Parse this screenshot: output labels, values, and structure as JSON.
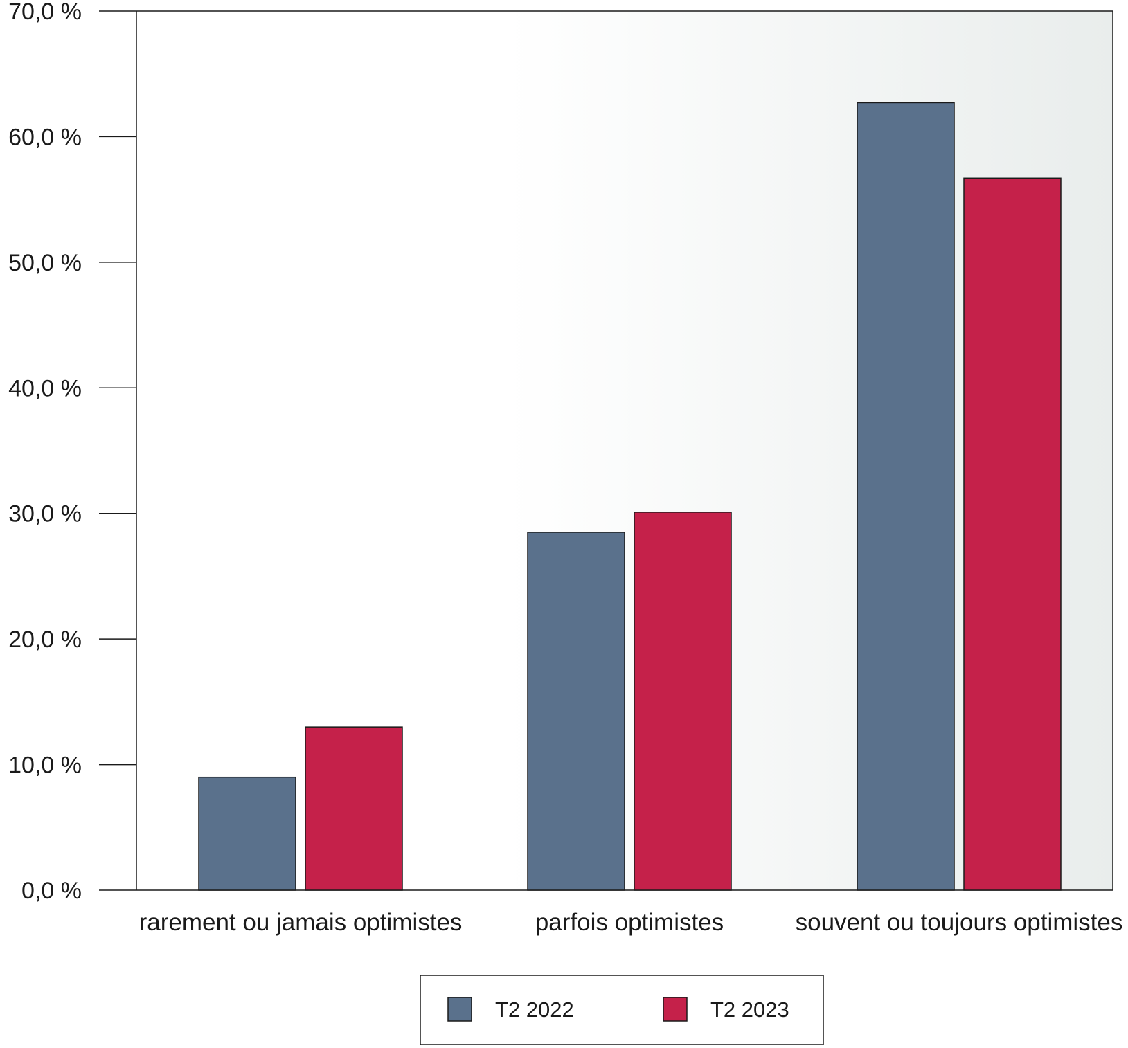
{
  "chart_data": {
    "type": "bar",
    "title": "",
    "xlabel": "",
    "ylabel": "",
    "categories": [
      "rarement ou jamais optimistes",
      "parfois optimistes",
      "souvent ou toujours optimistes"
    ],
    "series": [
      {
        "name": "T2 2022",
        "color": "#5a718c",
        "values": [
          9.0,
          28.5,
          62.7
        ]
      },
      {
        "name": "T2 2023",
        "color": "#c5214a",
        "values": [
          13.0,
          30.1,
          56.7
        ]
      }
    ],
    "ylim": [
      0,
      70
    ],
    "yticks": [
      0,
      10,
      20,
      30,
      40,
      50,
      60,
      70
    ],
    "ytick_labels": [
      "0,0 %",
      "10,0 %",
      "20,0 %",
      "30,0 %",
      "40,0 %",
      "50,0 %",
      "60,0 %",
      "70,0 %"
    ],
    "grid": false,
    "legend_position": "bottom-center",
    "background": "gradient white to light gray (left to right)"
  }
}
